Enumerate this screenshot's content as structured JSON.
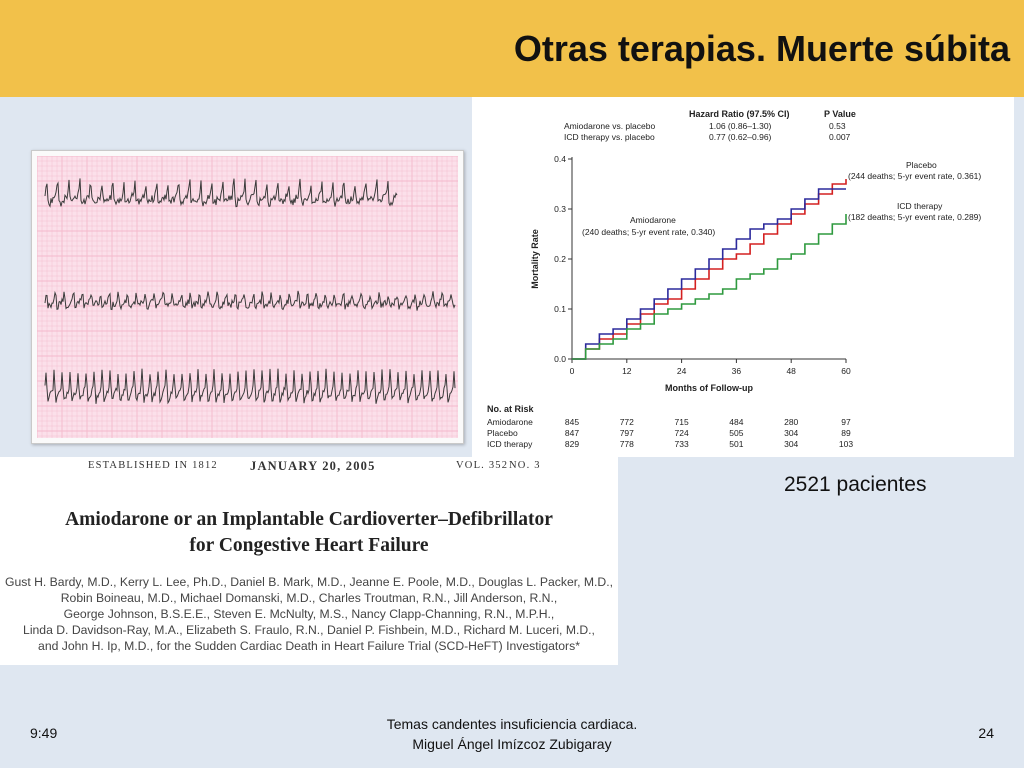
{
  "slide": {
    "title": "Otras terapias. Muerte súbita",
    "patients_label": "2521 pacientes"
  },
  "footer": {
    "time": "9:49",
    "center_line1": "Temas candentes insuficiencia cardiaca.",
    "center_line2": "Miguel Ángel Imízcoz Zubigaray",
    "page_number": "24"
  },
  "ecg": {
    "strips": 3,
    "grid_color": "#f4b9cc",
    "background_color": "#fbe0ea",
    "trace_color": "#3a3a3a"
  },
  "article": {
    "established": "ESTABLISHED IN 1812",
    "date": "JANUARY 20, 2005",
    "volume": "VOL. 352",
    "number": "NO. 3",
    "title_line1": "Amiodarone or an Implantable Cardioverter–Defibrillator",
    "title_line2": "for Congestive Heart Failure",
    "author_lines": [
      "Gust H. Bardy, M.D., Kerry L. Lee, Ph.D., Daniel B. Mark, M.D., Jeanne E. Poole, M.D., Douglas L. Packer, M.D.,",
      "Robin Boineau, M.D., Michael Domanski, M.D., Charles Troutman, R.N., Jill Anderson, R.N.,",
      "George Johnson, B.S.E.E., Steven E. McNulty, M.S., Nancy Clapp-Channing, R.N., M.P.H.,",
      "Linda D. Davidson-Ray, M.A., Elizabeth S. Fraulo, R.N., Daniel P. Fishbein, M.D., Richard M. Luceri, M.D.,",
      "and John H. Ip, M.D., for the Sudden Cardiac Death in Heart Failure Trial (SCD-HeFT) Investigators*"
    ]
  },
  "chart_data": {
    "type": "line",
    "xlabel": "Months of Follow-up",
    "ylabel": "Mortality Rate",
    "xlim": [
      0,
      60
    ],
    "ylim": [
      0,
      0.4
    ],
    "x_ticks": [
      0,
      12,
      24,
      36,
      48,
      60
    ],
    "y_ticks": [
      0.0,
      0.1,
      0.2,
      0.3,
      0.4
    ],
    "y_tick_labels": [
      "0.0",
      "0.1",
      "0.2",
      "0.3",
      "0.4"
    ],
    "hazard_table": {
      "headers": [
        "Hazard Ratio (97.5% CI)",
        "P Value"
      ],
      "rows": [
        {
          "label": "Amiodarone vs. placebo",
          "hr": "1.06 (0.86–1.30)",
          "p": "0.53"
        },
        {
          "label": "ICD therapy vs. placebo",
          "hr": "0.77 (0.62–0.96)",
          "p": "0.007"
        }
      ]
    },
    "annotations": [
      {
        "lines": [
          "Placebo",
          "(244 deaths; 5-yr event rate, 0.361)"
        ]
      },
      {
        "lines": [
          "ICD therapy",
          "(182 deaths; 5-yr event rate, 0.289)"
        ]
      },
      {
        "lines": [
          "Amiodarone",
          "(240 deaths; 5-yr event rate, 0.340)"
        ]
      }
    ],
    "series": [
      {
        "name": "Placebo",
        "color": "#d42020",
        "x": [
          0,
          3,
          6,
          9,
          12,
          15,
          18,
          21,
          24,
          27,
          30,
          33,
          36,
          39,
          42,
          45,
          48,
          51,
          54,
          57,
          60
        ],
        "y": [
          0,
          0.02,
          0.04,
          0.05,
          0.07,
          0.09,
          0.11,
          0.12,
          0.14,
          0.16,
          0.18,
          0.2,
          0.21,
          0.23,
          0.25,
          0.27,
          0.29,
          0.31,
          0.33,
          0.35,
          0.36
        ]
      },
      {
        "name": "Amiodarone",
        "color": "#2c2a9c",
        "x": [
          0,
          3,
          6,
          9,
          12,
          15,
          18,
          21,
          24,
          27,
          30,
          33,
          36,
          39,
          42,
          45,
          48,
          51,
          54,
          57,
          60
        ],
        "y": [
          0,
          0.03,
          0.05,
          0.06,
          0.08,
          0.1,
          0.12,
          0.14,
          0.16,
          0.18,
          0.2,
          0.22,
          0.24,
          0.26,
          0.27,
          0.28,
          0.3,
          0.32,
          0.34,
          0.34,
          0.34
        ]
      },
      {
        "name": "ICD therapy",
        "color": "#2f9a3f",
        "x": [
          0,
          3,
          6,
          9,
          12,
          15,
          18,
          21,
          24,
          27,
          30,
          33,
          36,
          39,
          42,
          45,
          48,
          51,
          54,
          57,
          60
        ],
        "y": [
          0,
          0.02,
          0.03,
          0.04,
          0.06,
          0.07,
          0.09,
          0.1,
          0.11,
          0.12,
          0.13,
          0.14,
          0.16,
          0.17,
          0.18,
          0.2,
          0.21,
          0.23,
          0.25,
          0.27,
          0.29
        ]
      }
    ],
    "risk_table": {
      "title": "No. at Risk",
      "rows": [
        {
          "label": "Amiodarone",
          "values": [
            "845",
            "772",
            "715",
            "484",
            "280",
            "97"
          ]
        },
        {
          "label": "Placebo",
          "values": [
            "847",
            "797",
            "724",
            "505",
            "304",
            "89"
          ]
        },
        {
          "label": "ICD therapy",
          "values": [
            "829",
            "778",
            "733",
            "501",
            "304",
            "103"
          ]
        }
      ]
    }
  }
}
